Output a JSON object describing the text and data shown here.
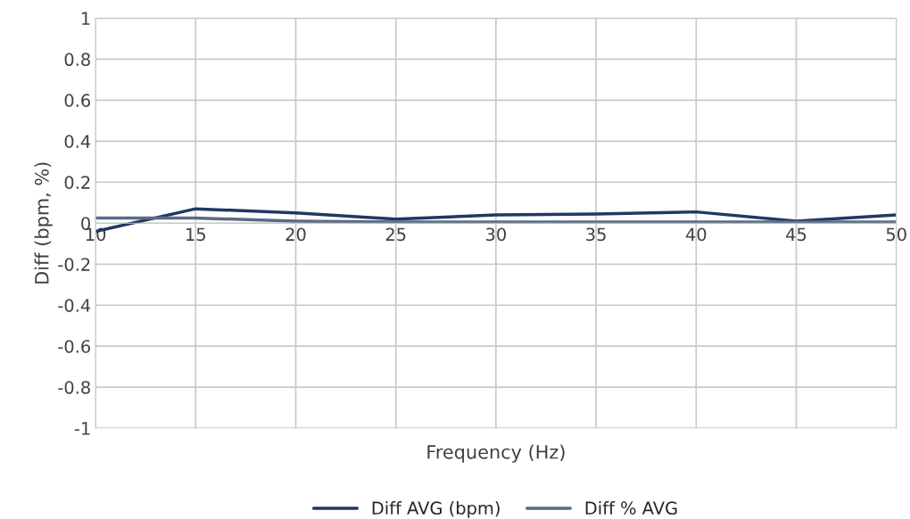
{
  "chart_data": {
    "type": "line",
    "xlabel": "Frequency (Hz)",
    "ylabel": "Diff (bpm, %)",
    "x": [
      10,
      15,
      20,
      25,
      30,
      35,
      40,
      45,
      50
    ],
    "series": [
      {
        "name": "Diff AVG (bpm)",
        "color": "#203864",
        "values": [
          -0.04,
          0.07,
          0.05,
          0.02,
          0.04,
          0.045,
          0.055,
          0.01,
          0.04
        ]
      },
      {
        "name": "Diff % AVG",
        "color": "#5a6b85",
        "values": [
          0.025,
          0.025,
          0.01,
          0.005,
          0.005,
          0.005,
          0.005,
          0.005,
          0.005
        ]
      }
    ],
    "xlim": [
      10,
      50
    ],
    "xticks": [
      10,
      15,
      20,
      25,
      30,
      35,
      40,
      45,
      50
    ],
    "ylim": [
      -1,
      1
    ],
    "yticks": [
      -1,
      -0.8,
      -0.6,
      -0.4,
      -0.2,
      0,
      0.2,
      0.4,
      0.6,
      0.8,
      1
    ],
    "grid": true,
    "legend": "bottom",
    "marker": "none",
    "line_style": "solid"
  }
}
